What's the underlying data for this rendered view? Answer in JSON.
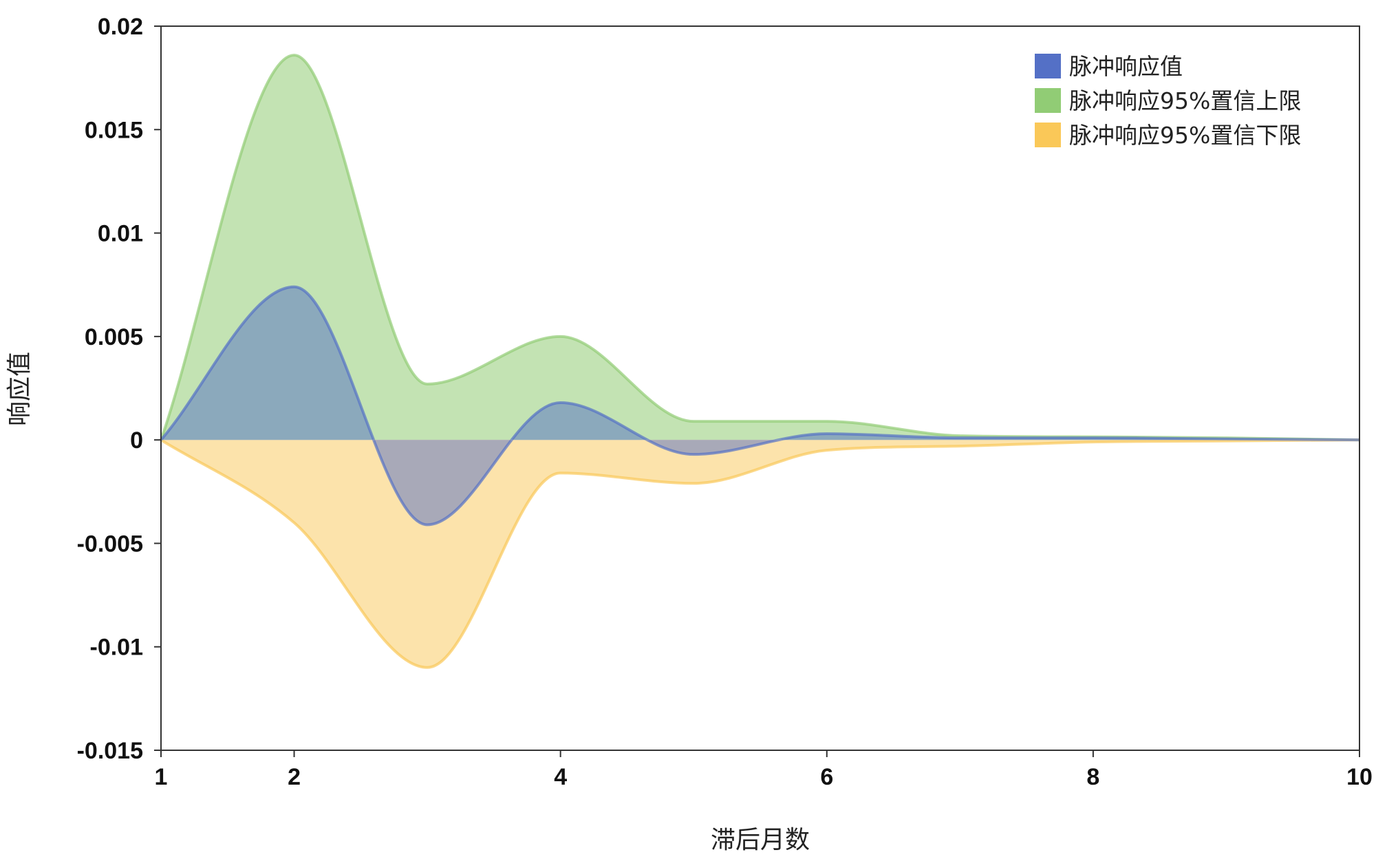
{
  "chart_data": {
    "type": "area",
    "xlabel": "滞后月数",
    "ylabel": "响应值",
    "xlim": [
      1,
      10
    ],
    "ylim": [
      -0.015,
      0.02
    ],
    "x_ticks": [
      1,
      2,
      4,
      6,
      8,
      10
    ],
    "y_ticks": [
      {
        "value": 0.02,
        "label": "0.02"
      },
      {
        "value": 0.015,
        "label": "0.015"
      },
      {
        "value": 0.01,
        "label": "0.01"
      },
      {
        "value": 0.005,
        "label": "0.005"
      },
      {
        "value": 0,
        "label": "0"
      },
      {
        "value": -0.005,
        "label": "-0.005"
      },
      {
        "value": -0.01,
        "label": "-0.01"
      },
      {
        "value": -0.015,
        "label": "-0.015"
      }
    ],
    "grid": false,
    "legend_position": "top-right",
    "x": [
      1,
      2,
      3,
      4,
      5,
      6,
      7,
      8,
      9,
      10
    ],
    "series": [
      {
        "name": "脉冲响应值",
        "color": "#5470c6",
        "values": [
          0,
          0.0074,
          -0.0041,
          0.0018,
          -0.0007,
          0.0003,
          0.0001,
          0.0001,
          5e-05,
          0.0
        ]
      },
      {
        "name": "脉冲响应95%置信上限",
        "color": "#91cc75",
        "values": [
          0,
          0.0186,
          0.0027,
          0.005,
          0.0009,
          0.0009,
          0.0002,
          0.00015,
          0.0001,
          0.0
        ]
      },
      {
        "name": "脉冲响应95%置信下限",
        "color": "#fac858",
        "values": [
          0,
          -0.004,
          -0.011,
          -0.0016,
          -0.0021,
          -0.0005,
          -0.0003,
          -0.0001,
          -5e-05,
          0.0
        ]
      }
    ]
  }
}
